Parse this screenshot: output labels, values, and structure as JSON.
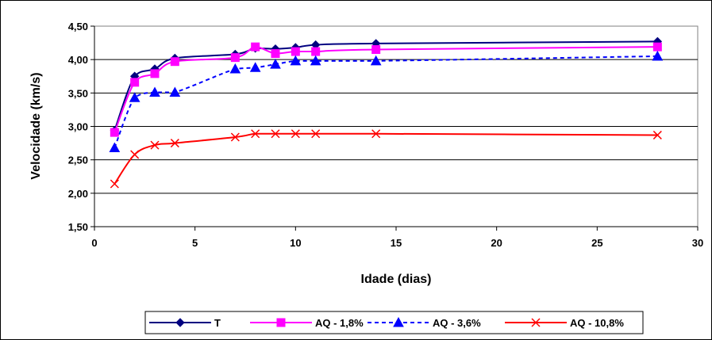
{
  "chart_data": {
    "type": "line",
    "xlabel": "Idade (dias)",
    "ylabel": "Velocidade (km/s)",
    "xlim": [
      0,
      30
    ],
    "ylim": [
      1.5,
      4.5
    ],
    "xticks": [
      "0",
      "5",
      "10",
      "15",
      "20",
      "25",
      "30"
    ],
    "yticks": [
      "1,50",
      "2,00",
      "2,50",
      "3,00",
      "3,50",
      "4,00",
      "4,50"
    ],
    "grid": "horizontal",
    "legend_position": "bottom",
    "series": [
      {
        "name": "T",
        "color": "#000080",
        "marker": "diamond",
        "dash": "solid",
        "x": [
          1,
          2,
          3,
          4,
          7,
          8,
          9,
          10,
          11,
          14,
          28
        ],
        "y": [
          2.94,
          3.75,
          3.86,
          4.02,
          4.08,
          4.17,
          4.16,
          4.18,
          4.22,
          4.24,
          4.27
        ]
      },
      {
        "name": "AQ - 1,8%",
        "color": "#ff00ff",
        "marker": "square",
        "dash": "solid",
        "x": [
          1,
          2,
          3,
          4,
          7,
          8,
          9,
          10,
          11,
          14,
          28
        ],
        "y": [
          2.91,
          3.66,
          3.79,
          3.97,
          4.03,
          4.19,
          4.09,
          4.12,
          4.12,
          4.15,
          4.19
        ]
      },
      {
        "name": "AQ - 3,6%",
        "color": "#0000ff",
        "marker": "triangle",
        "dash": "dashed",
        "x": [
          1,
          2,
          3,
          4,
          7,
          8,
          9,
          10,
          11,
          14,
          28
        ],
        "y": [
          2.68,
          3.43,
          3.51,
          3.51,
          3.86,
          3.88,
          3.93,
          3.98,
          3.98,
          3.98,
          4.05
        ]
      },
      {
        "name": "AQ - 10,8%",
        "color": "#ff0000",
        "marker": "x",
        "dash": "solid",
        "x": [
          1,
          2,
          3,
          4,
          7,
          8,
          9,
          10,
          11,
          14,
          28
        ],
        "y": [
          2.14,
          2.58,
          2.72,
          2.75,
          2.84,
          2.89,
          2.89,
          2.89,
          2.89,
          2.89,
          2.87
        ]
      }
    ]
  }
}
